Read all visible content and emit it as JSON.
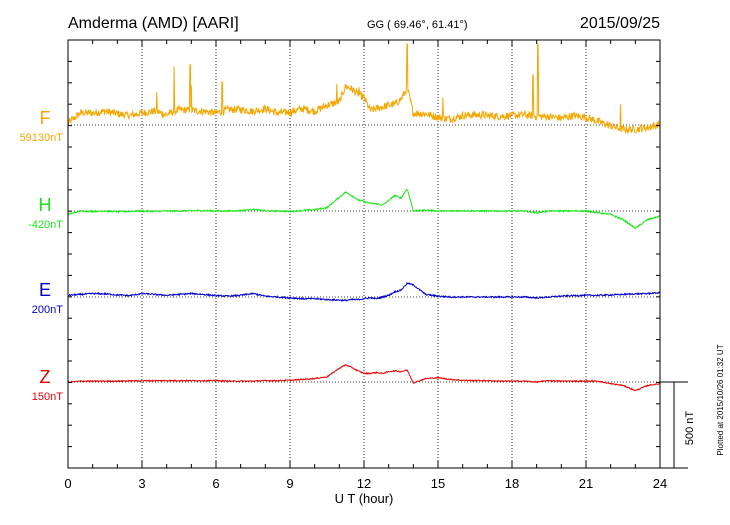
{
  "header": {
    "station": "Amderma (AMD)  [AARI]",
    "coords": "GG ( 69.46°,  61.41°)",
    "date": "2015/09/25"
  },
  "footer": {
    "plotted": "Plotted at 2015/10/26 01:32 UT"
  },
  "chart_data": {
    "type": "line",
    "title": "",
    "xlabel": "U T (hour)",
    "ylabel": "",
    "xlim": [
      0,
      24
    ],
    "x_ticks": [
      "0",
      "3",
      "6",
      "9",
      "12",
      "15",
      "18",
      "21",
      "24"
    ],
    "scale_bar": {
      "label": "500 nT",
      "value": 500
    },
    "colors": {
      "F": "#f5a700",
      "H": "#19e619",
      "E": "#0000cc",
      "Z": "#e60000"
    },
    "series": [
      {
        "name": "F",
        "baseline_label": "59130nT",
        "baseline": 59130,
        "noise": 22,
        "x": [
          0,
          0.5,
          1,
          1.5,
          2,
          2.5,
          3,
          3.5,
          4,
          4.5,
          5,
          5.5,
          6,
          6.5,
          7,
          7.5,
          8,
          8.5,
          9,
          9.5,
          10,
          10.5,
          11,
          11.25,
          11.5,
          11.75,
          12,
          12.25,
          12.5,
          12.75,
          13,
          13.25,
          13.5,
          13.75,
          14,
          14.5,
          15,
          15.5,
          16,
          16.5,
          17,
          17.5,
          18,
          18.5,
          19,
          19.5,
          20,
          20.5,
          21,
          21.5,
          22,
          22.5,
          23,
          23.5,
          24
        ],
        "y": [
          59140,
          59200,
          59200,
          59210,
          59195,
          59185,
          59200,
          59210,
          59190,
          59220,
          59215,
          59210,
          59200,
          59220,
          59220,
          59210,
          59225,
          59200,
          59205,
          59225,
          59210,
          59245,
          59265,
          59355,
          59340,
          59310,
          59290,
          59215,
          59225,
          59235,
          59245,
          59250,
          59280,
          59345,
          59200,
          59195,
          59175,
          59165,
          59185,
          59190,
          59185,
          59180,
          59185,
          59190,
          59180,
          59180,
          59170,
          59185,
          59175,
          59150,
          59125,
          59105,
          59105,
          59115,
          59135
        ],
        "spikes": [
          [
            4.3,
            59470
          ],
          [
            4.95,
            59480
          ],
          [
            5.0,
            59360
          ],
          [
            6.25,
            59380
          ],
          [
            10.9,
            59370
          ],
          [
            11.8,
            59350
          ],
          [
            13.75,
            59600
          ],
          [
            18.85,
            59420
          ],
          [
            19.05,
            59600
          ],
          [
            3.6,
            59320
          ],
          [
            15.2,
            59290
          ],
          [
            22.4,
            59250
          ]
        ]
      },
      {
        "name": "H",
        "baseline_label": "-420nT",
        "baseline": -420,
        "noise": 4,
        "x": [
          0,
          0.5,
          1,
          1.5,
          2,
          2.5,
          3,
          3.5,
          4,
          4.5,
          5,
          5.5,
          6,
          6.5,
          7,
          7.5,
          8,
          8.5,
          9,
          9.5,
          10,
          10.5,
          11,
          11.25,
          11.5,
          11.75,
          12,
          12.25,
          12.5,
          12.75,
          13,
          13.25,
          13.5,
          13.75,
          14,
          14.5,
          15,
          15.5,
          16,
          16.5,
          17,
          17.5,
          18,
          18.5,
          19,
          19.5,
          20,
          20.5,
          21,
          21.5,
          22,
          22.5,
          23,
          23.5,
          24
        ],
        "y": [
          -440,
          -420,
          -422,
          -420,
          -424,
          -422,
          -420,
          -422,
          -420,
          -420,
          -418,
          -418,
          -420,
          -420,
          -418,
          -410,
          -420,
          -420,
          -422,
          -418,
          -412,
          -400,
          -340,
          -310,
          -330,
          -355,
          -365,
          -375,
          -378,
          -385,
          -360,
          -330,
          -345,
          -290,
          -420,
          -415,
          -420,
          -420,
          -418,
          -420,
          -420,
          -420,
          -420,
          -420,
          -430,
          -420,
          -420,
          -420,
          -420,
          -430,
          -440,
          -470,
          -520,
          -470,
          -450
        ]
      },
      {
        "name": "E",
        "baseline_label": "200nT",
        "baseline": 200,
        "noise": 4,
        "x": [
          0,
          0.5,
          1,
          1.5,
          2,
          2.5,
          3,
          3.5,
          4,
          4.5,
          5,
          5.5,
          6,
          6.5,
          7,
          7.5,
          8,
          8.5,
          9,
          9.5,
          10,
          10.5,
          11,
          11.25,
          11.5,
          11.75,
          12,
          12.25,
          12.5,
          12.75,
          13,
          13.25,
          13.5,
          13.75,
          14,
          14.5,
          15,
          15.5,
          16,
          16.5,
          17,
          17.5,
          18,
          18.5,
          19,
          19.5,
          20,
          20.5,
          21,
          21.5,
          22,
          22.5,
          23,
          23.5,
          24
        ],
        "y": [
          210,
          215,
          220,
          218,
          212,
          208,
          220,
          215,
          210,
          215,
          220,
          215,
          208,
          205,
          210,
          220,
          205,
          200,
          195,
          190,
          190,
          185,
          182,
          180,
          185,
          185,
          190,
          195,
          190,
          200,
          210,
          230,
          240,
          280,
          270,
          215,
          205,
          200,
          200,
          200,
          200,
          200,
          200,
          200,
          195,
          200,
          205,
          208,
          210,
          210,
          212,
          215,
          218,
          220,
          225
        ]
      },
      {
        "name": "Z",
        "baseline_label": "150nT",
        "baseline": 150,
        "noise": 3,
        "x": [
          0,
          0.5,
          1,
          1.5,
          2,
          2.5,
          3,
          3.5,
          4,
          4.5,
          5,
          5.5,
          6,
          6.5,
          7,
          7.5,
          8,
          8.5,
          9,
          9.5,
          10,
          10.5,
          11,
          11.25,
          11.5,
          11.75,
          12,
          12.25,
          12.5,
          12.75,
          13,
          13.25,
          13.5,
          13.75,
          14,
          14.5,
          15,
          15.5,
          16,
          16.5,
          17,
          17.5,
          18,
          18.5,
          19,
          19.5,
          20,
          20.5,
          21,
          21.5,
          22,
          22.5,
          23,
          23.5,
          24
        ],
        "y": [
          148,
          155,
          155,
          155,
          155,
          157,
          157,
          158,
          158,
          158,
          158,
          158,
          158,
          155,
          155,
          155,
          158,
          158,
          160,
          165,
          170,
          180,
          230,
          250,
          235,
          215,
          200,
          200,
          205,
          200,
          210,
          215,
          210,
          220,
          145,
          170,
          175,
          165,
          160,
          158,
          158,
          155,
          155,
          155,
          150,
          158,
          155,
          155,
          155,
          155,
          140,
          130,
          100,
          130,
          140
        ]
      }
    ]
  }
}
